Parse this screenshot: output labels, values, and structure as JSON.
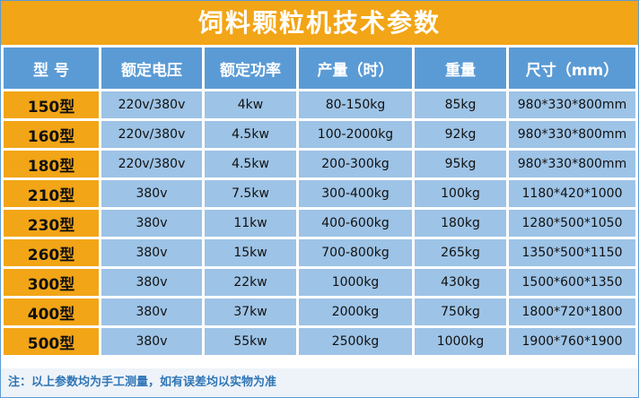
{
  "title": "饲料颗粒机技术参数",
  "table": {
    "header": [
      "型 号",
      "额定电压",
      "额定功率",
      "产量（时）",
      "重量",
      "尺寸（mm）"
    ],
    "rows": [
      [
        "150型",
        "220v/380v",
        "4kw",
        "80-150kg",
        "85kg",
        "980*330*800mm"
      ],
      [
        "160型",
        "220v/380v",
        "4.5kw",
        "100-2000kg",
        "92kg",
        "980*330*800mm"
      ],
      [
        "180型",
        "220v/380v",
        "4.5kw",
        "200-300kg",
        "95kg",
        "980*330*800mm"
      ],
      [
        "210型",
        "380v",
        "7.5kw",
        "300-400kg",
        "100kg",
        "1180*420*1000"
      ],
      [
        "230型",
        "380v",
        "11kw",
        "400-600kg",
        "180kg",
        "1280*500*1050"
      ],
      [
        "260型",
        "380v",
        "15kw",
        "700-800kg",
        "265kg",
        "1350*500*1150"
      ],
      [
        "300型",
        "380v",
        "22kw",
        "1000kg",
        "430kg",
        "1500*600*1350"
      ],
      [
        "400型",
        "380v",
        "37kw",
        "2000kg",
        "750kg",
        "1800*720*1800"
      ],
      [
        "500型",
        "380v",
        "55kw",
        "2500kg",
        "1000kg",
        "1900*760*1900"
      ]
    ]
  },
  "note": "注：以上参数均为手工测量，如有误差均以实物为准"
}
